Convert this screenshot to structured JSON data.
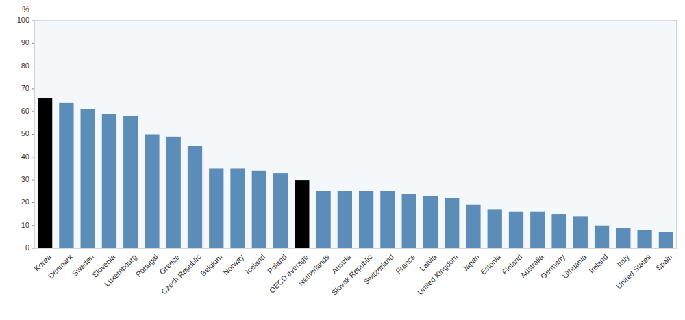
{
  "chart_data": {
    "type": "bar",
    "y_label": "%",
    "categories": [
      "Korea",
      "Denmark",
      "Sweden",
      "Slovenia",
      "Luxembourg",
      "Portugal",
      "Greece",
      "Czech Republic",
      "Belgium",
      "Norway",
      "Iceland",
      "Poland",
      "OECD average",
      "Netherlands",
      "Austria",
      "Slovak Republic",
      "Switzerland",
      "France",
      "Latvia",
      "United Kingdom",
      "Japan",
      "Estonia",
      "Finland",
      "Australia",
      "Germany",
      "Lithuania",
      "Ireland",
      "Italy",
      "United States",
      "Spain"
    ],
    "values": [
      66,
      64,
      61,
      59,
      58,
      50,
      49,
      45,
      35,
      35,
      34,
      33,
      30,
      25,
      25,
      25,
      25,
      24,
      23,
      22,
      19,
      17,
      16,
      16,
      15,
      14,
      10,
      9,
      8,
      7
    ],
    "colors": [
      "#000000",
      "#5b8db8",
      "#5b8db8",
      "#5b8db8",
      "#5b8db8",
      "#5b8db8",
      "#5b8db8",
      "#5b8db8",
      "#5b8db8",
      "#5b8db8",
      "#5b8db8",
      "#5b8db8",
      "#000000",
      "#5b8db8",
      "#5b8db8",
      "#5b8db8",
      "#5b8db8",
      "#5b8db8",
      "#5b8db8",
      "#5b8db8",
      "#5b8db8",
      "#5b8db8",
      "#5b8db8",
      "#5b8db8",
      "#5b8db8",
      "#5b8db8",
      "#5b8db8",
      "#5b8db8",
      "#5b8db8",
      "#5b8db8"
    ],
    "ylim": [
      0,
      100
    ],
    "yticks": [
      0,
      10,
      20,
      30,
      40,
      50,
      60,
      70,
      80,
      90,
      100
    ],
    "grid": false
  }
}
